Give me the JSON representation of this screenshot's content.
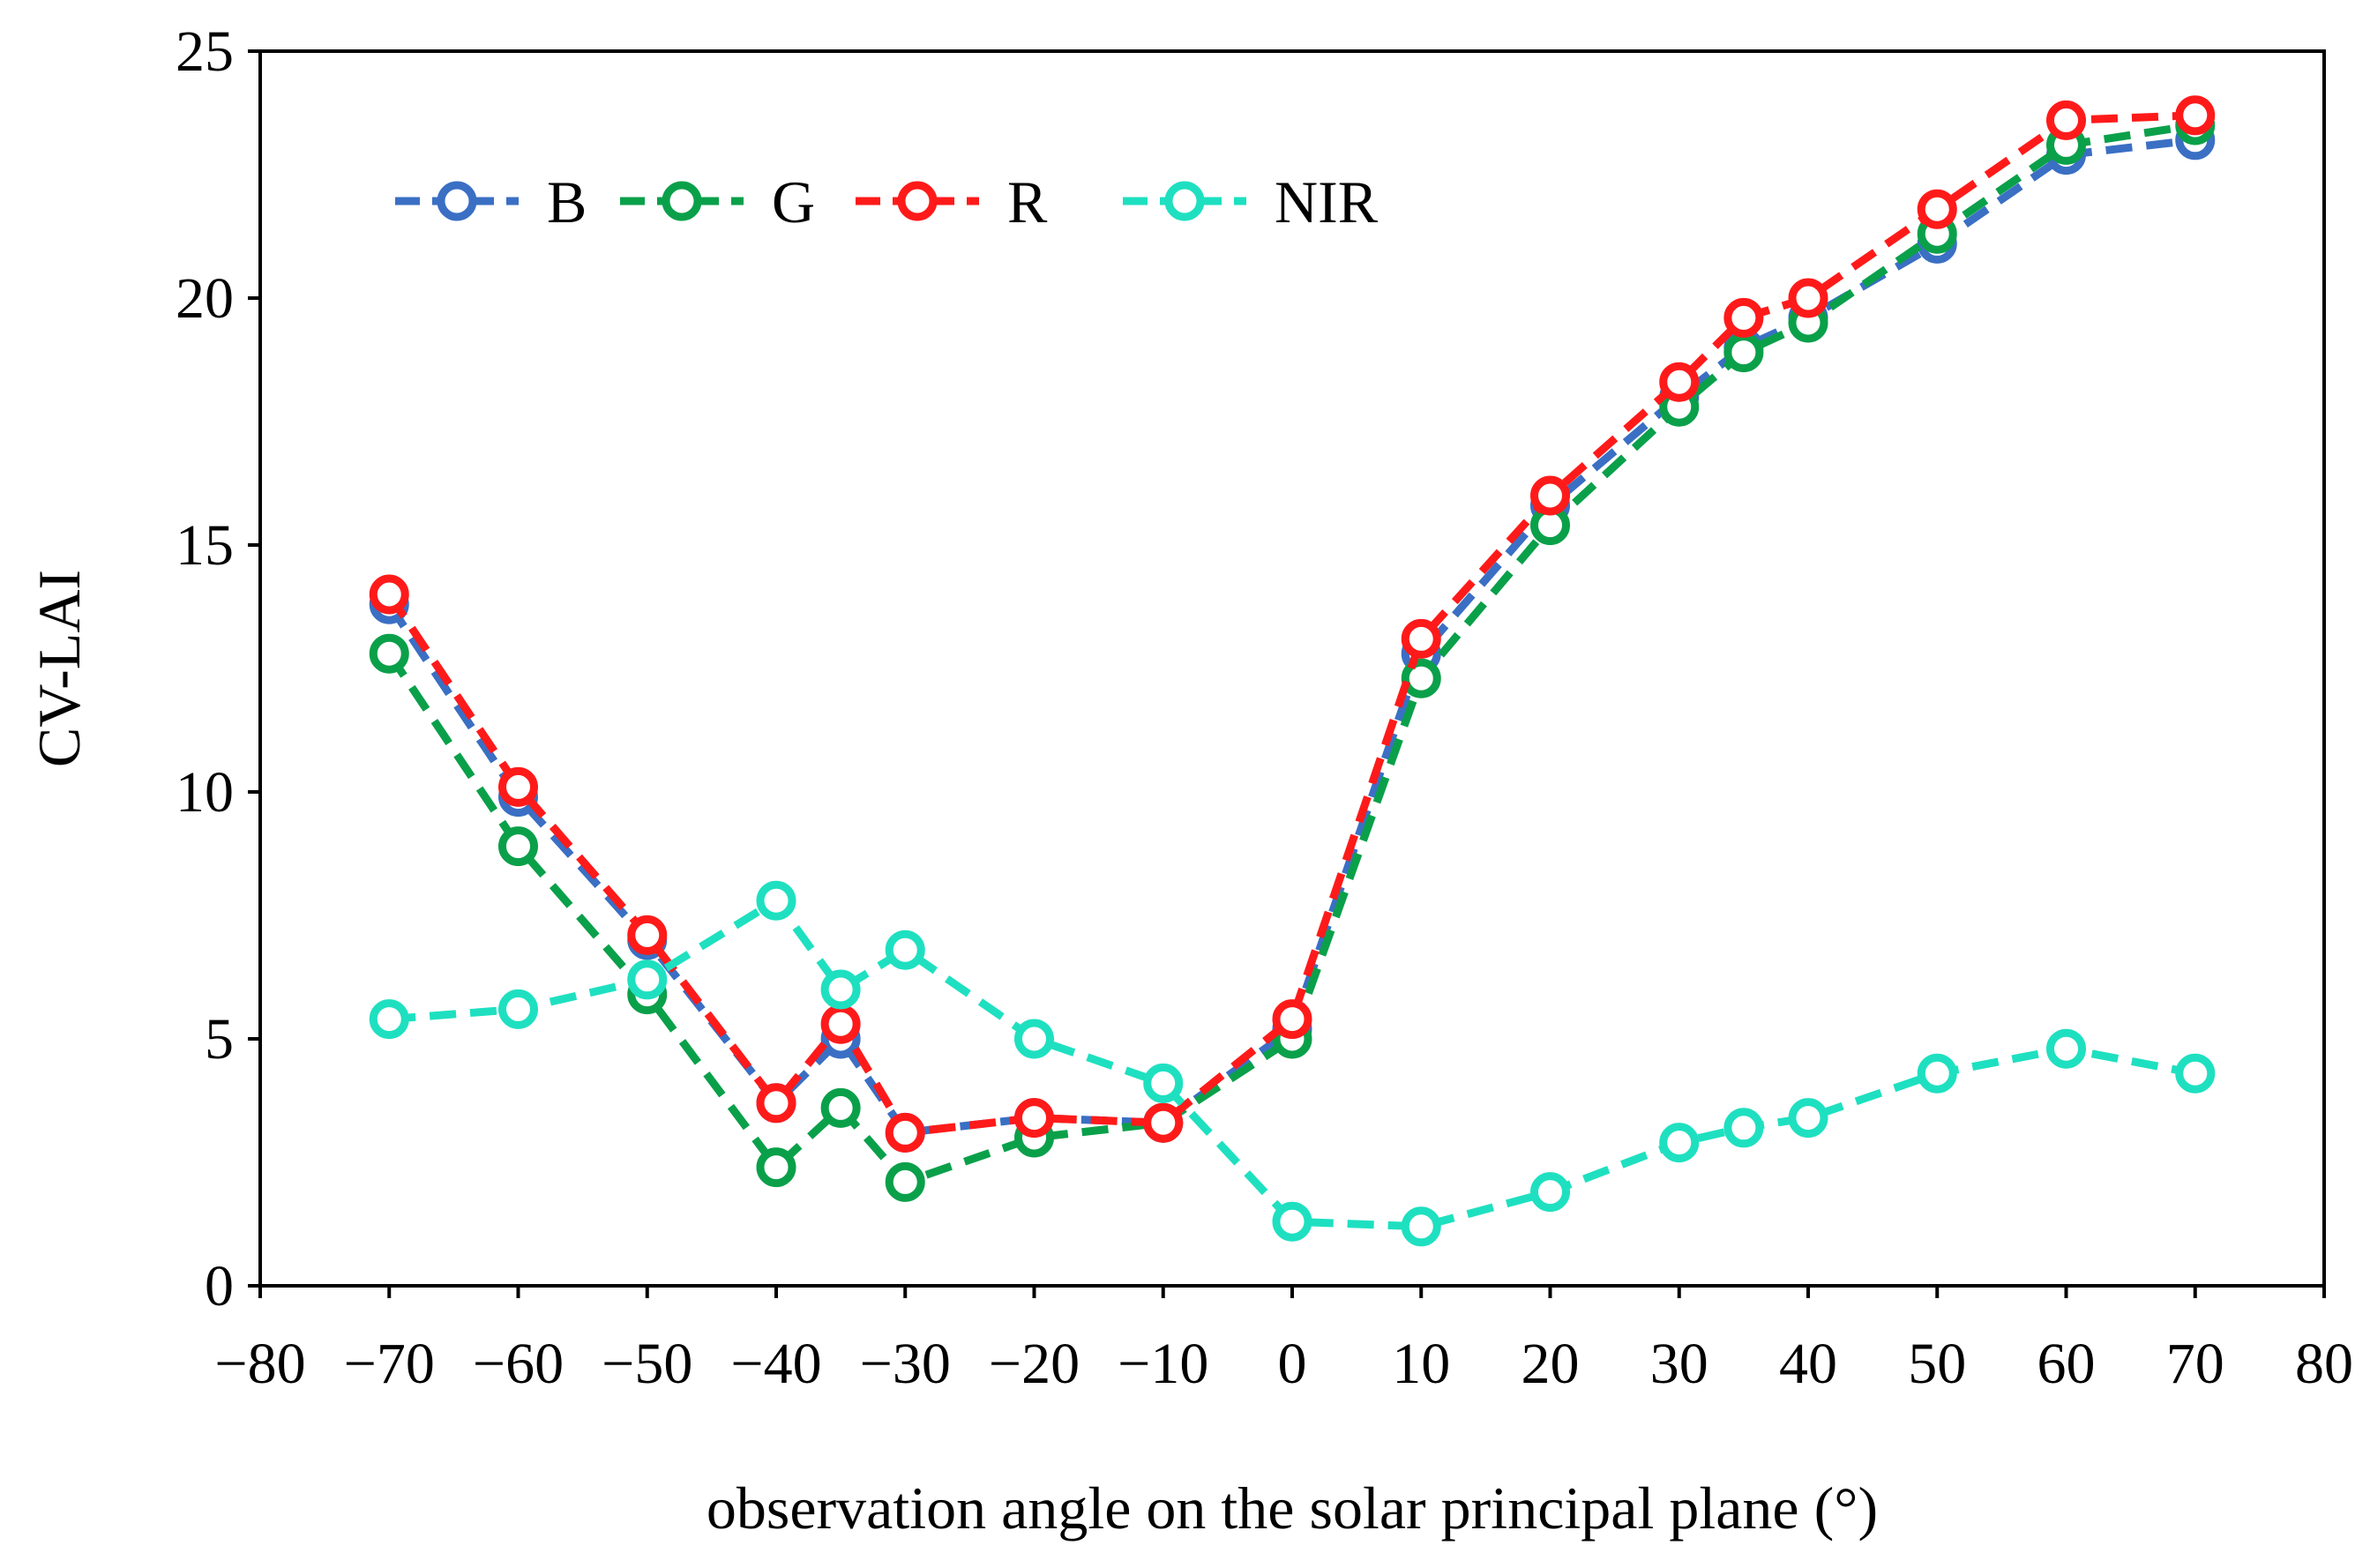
{
  "chart_data": {
    "type": "line",
    "title": "",
    "xlabel": "observation angle on the solar principal plane (°)",
    "ylabel": "CV-LAI",
    "xlim": [
      -80,
      80
    ],
    "ylim": [
      0,
      25
    ],
    "xticks": [
      -80,
      -70,
      -60,
      -50,
      -40,
      -30,
      -20,
      -10,
      0,
      10,
      20,
      30,
      40,
      50,
      60,
      70,
      80
    ],
    "xtick_labels": [
      "−80",
      "−70",
      "−60",
      "−50",
      "−40",
      "−30",
      "−20",
      "−10",
      "0",
      "10",
      "20",
      "30",
      "40",
      "50",
      "60",
      "70",
      "80"
    ],
    "yticks": [
      0,
      5,
      10,
      15,
      20,
      25
    ],
    "ytick_labels": [
      "0",
      "5",
      "10",
      "15",
      "20",
      "25"
    ],
    "grid": false,
    "legend_position": "top-left",
    "x": [
      -70,
      -60,
      -50,
      -40,
      -35,
      -30,
      -20,
      -10,
      0,
      10,
      20,
      30,
      35,
      40,
      50,
      60,
      70
    ],
    "series": [
      {
        "name": "B",
        "color": "#3a6fc4",
        "dashed": true,
        "values": [
          13.8,
          9.9,
          7.0,
          3.7,
          5.0,
          3.1,
          3.4,
          3.3,
          5.2,
          12.8,
          15.8,
          18.0,
          19.0,
          19.6,
          21.1,
          22.9,
          23.2
        ]
      },
      {
        "name": "G",
        "color": "#0aa04a",
        "dashed": true,
        "values": [
          12.8,
          8.9,
          5.9,
          2.4,
          3.6,
          2.1,
          3.0,
          3.3,
          5.0,
          12.3,
          15.4,
          17.8,
          18.9,
          19.5,
          21.3,
          23.1,
          23.5
        ]
      },
      {
        "name": "R",
        "color": "#ff1a1a",
        "dashed": true,
        "values": [
          14.0,
          10.1,
          7.1,
          3.7,
          5.3,
          3.1,
          3.4,
          3.3,
          5.4,
          13.1,
          16.0,
          18.3,
          19.6,
          20.0,
          21.8,
          23.6,
          23.7
        ]
      },
      {
        "name": "NIR",
        "color": "#1ee0c0",
        "dashed": true,
        "values": [
          5.4,
          5.6,
          6.2,
          7.8,
          6.0,
          6.8,
          5.0,
          4.1,
          1.3,
          1.2,
          1.9,
          2.9,
          3.2,
          3.4,
          4.3,
          4.8,
          4.3
        ]
      }
    ]
  }
}
